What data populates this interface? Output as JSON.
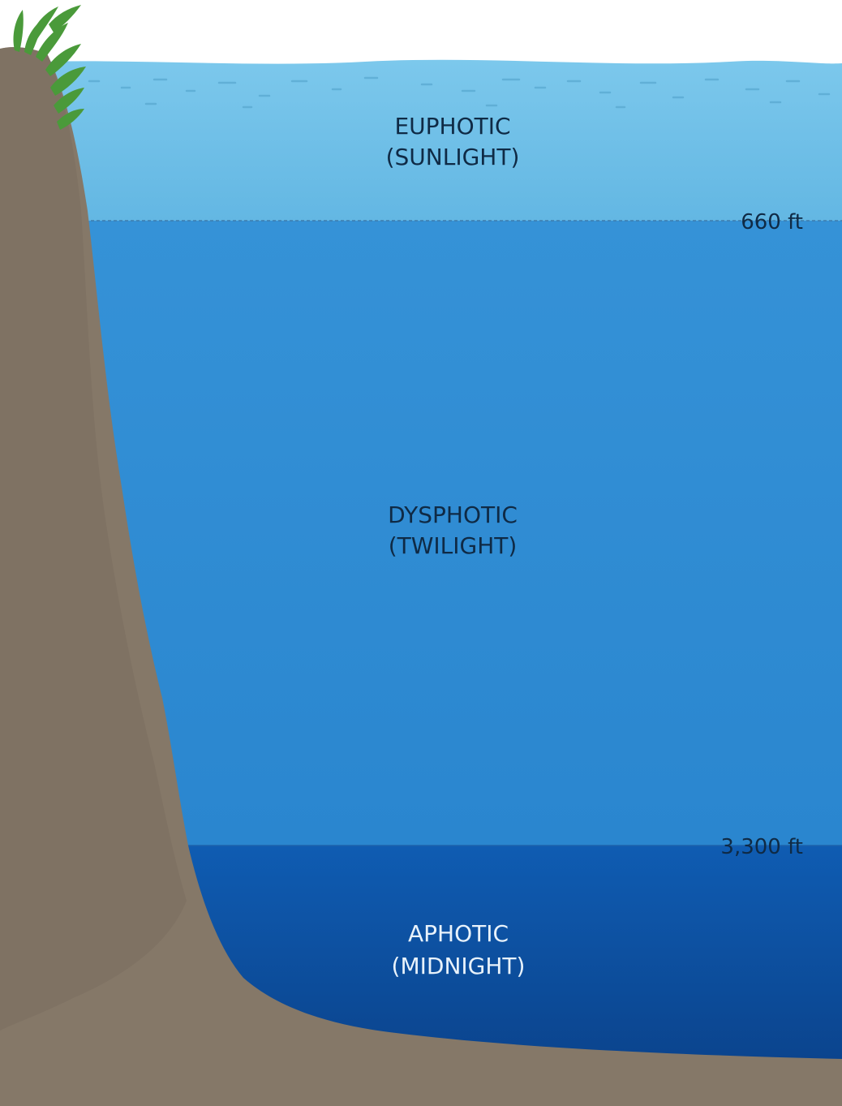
{
  "zones": [
    {
      "name": "EUPHOTIC",
      "subtitle": "(SUNLIGHT)",
      "color": "#6bbde6"
    },
    {
      "name": "DYSPHOTIC",
      "subtitle": "(TWILIGHT)",
      "color": "#2f8fd6"
    },
    {
      "name": "APHOTIC",
      "subtitle": "(MIDNIGHT)",
      "color": "#0d55a8"
    }
  ],
  "depths": [
    {
      "label": "660 ft"
    },
    {
      "label": "3,300 ft"
    }
  ],
  "colors": {
    "rock": "#857868",
    "rock_shadow": "#786b5d",
    "seaweed": "#4a9a3a",
    "label_dark": "#0f2a45",
    "label_light": "#e8f2fb"
  }
}
